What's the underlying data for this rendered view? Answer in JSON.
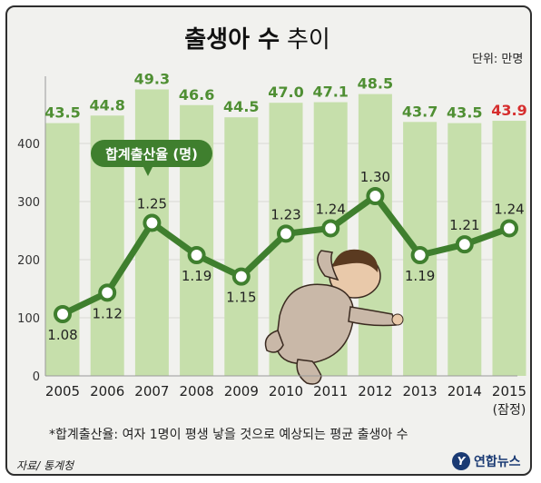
{
  "title_bold": "출생아 수",
  "title_light": "추이",
  "unit_label": "단위: 만명",
  "footnote": "*합계출산율: 여자 1명이 평생 낳을 것으로 예상되는 평균 출생아 수",
  "source": "자료/ 통계청",
  "logo_text": "연합뉴스",
  "colors": {
    "bar": "#c6dfab",
    "bar_label": "#4f8f33",
    "highlight_label": "#d62e2e",
    "line": "#3f7f2e",
    "marker_fill": "#ffffff",
    "axis_text": "#333333"
  },
  "chart_data": {
    "type": "bar",
    "title": "출생아 수 추이",
    "categories": [
      "2005",
      "2006",
      "2007",
      "2008",
      "2009",
      "2010",
      "2011",
      "2012",
      "2013",
      "2014",
      "2015"
    ],
    "category_note": "(잠정)",
    "ylim": [
      0,
      500
    ],
    "yticks": [
      0,
      100,
      200,
      300,
      400
    ],
    "series": [
      {
        "name": "출생아 수",
        "values": [
          43.5,
          44.8,
          49.3,
          46.6,
          44.5,
          47.0,
          47.1,
          48.5,
          43.7,
          43.5,
          43.9
        ],
        "labels": [
          "43.5",
          "44.8",
          "49.3",
          "46.6",
          "44.5",
          "47.0",
          "47.1",
          "48.5",
          "43.7",
          "43.5",
          "43.9"
        ]
      },
      {
        "name": "합계출산율 (명)",
        "type": "line",
        "values": [
          1.08,
          1.12,
          1.25,
          1.19,
          1.15,
          1.23,
          1.24,
          1.3,
          1.19,
          1.21,
          1.24
        ],
        "labels": [
          "1.08",
          "1.12",
          "1.25",
          "1.19",
          "1.15",
          "1.23",
          "1.24",
          "1.30",
          "1.19",
          "1.21",
          "1.24"
        ]
      }
    ],
    "highlight_index": 10
  }
}
